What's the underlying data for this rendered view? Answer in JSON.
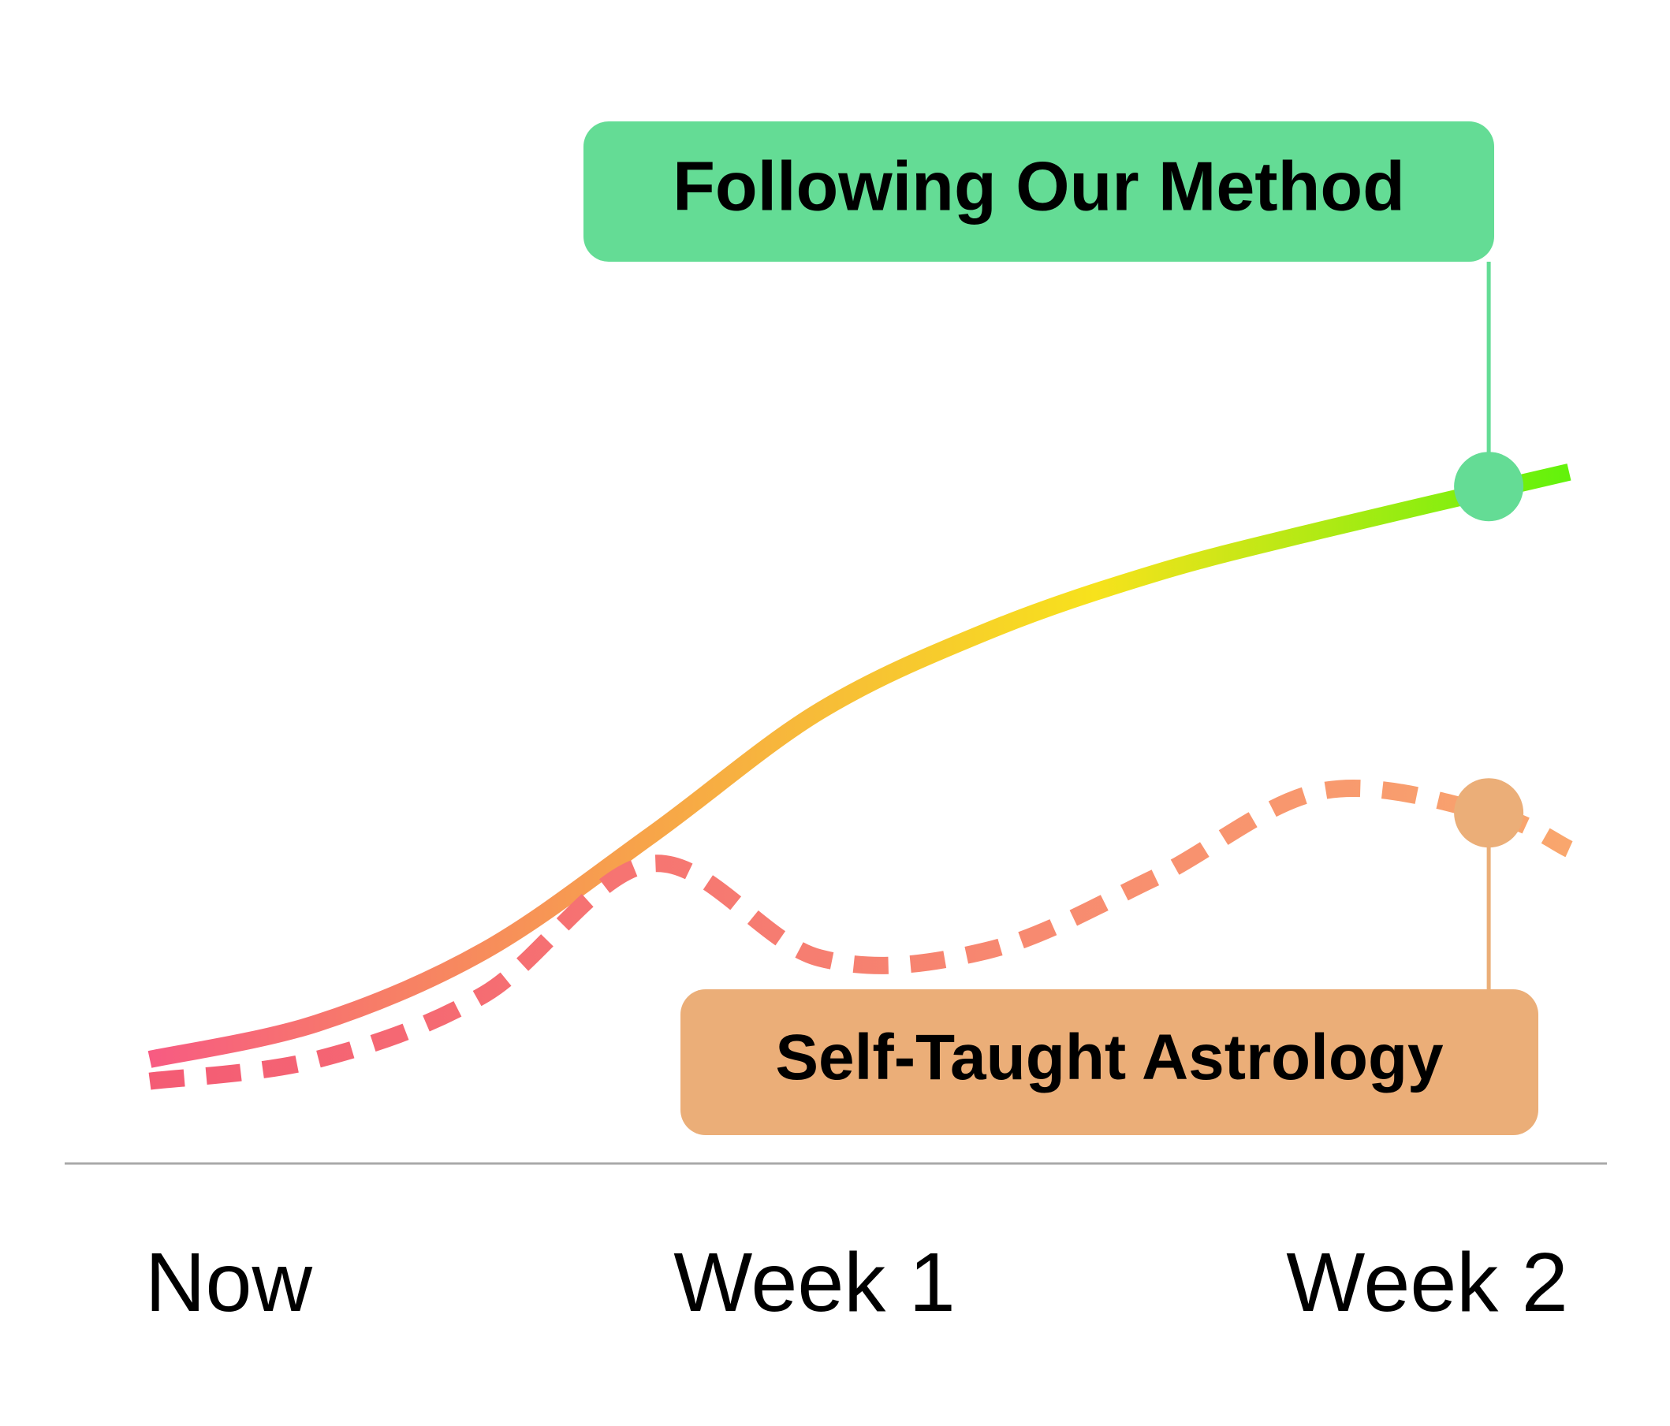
{
  "colors": {
    "background": "#ffffff",
    "method_gradient": [
      "#f75b82",
      "#f7a14c",
      "#f7e21c",
      "#62f20b"
    ],
    "method_marker": "#64dc95",
    "method_label_bg": "#64dc95",
    "astrology_stroke_start": "#f45b74",
    "astrology_stroke_end": "#f9a66d",
    "astrology_marker": "#ebae78",
    "astrology_label_bg": "#ebae78",
    "baseline": "#a9a9a9",
    "text": "#000000"
  },
  "chart_data": {
    "type": "line",
    "categories": [
      "Now",
      "Week 1",
      "Week 2"
    ],
    "x_range": [
      0,
      2.12
    ],
    "y_range": [
      0,
      100
    ],
    "series": [
      {
        "name": "Following Our Method",
        "style": "solid-gradient",
        "points": [
          [
            0.0,
            5
          ],
          [
            0.25,
            10
          ],
          [
            0.5,
            20
          ],
          [
            0.75,
            36
          ],
          [
            1.0,
            53
          ],
          [
            1.25,
            64
          ],
          [
            1.5,
            72
          ],
          [
            1.75,
            78
          ],
          [
            2.12,
            86
          ]
        ],
        "highlight_x": 2.0,
        "highlight_y": 84
      },
      {
        "name": "Self-Taught Astrology",
        "style": "dashed",
        "points": [
          [
            0.0,
            2
          ],
          [
            0.25,
            5
          ],
          [
            0.5,
            14
          ],
          [
            0.75,
            32
          ],
          [
            1.0,
            19
          ],
          [
            1.25,
            20
          ],
          [
            1.5,
            30
          ],
          [
            1.75,
            42
          ],
          [
            2.0,
            39
          ],
          [
            2.12,
            34
          ]
        ],
        "highlight_x": 2.0,
        "highlight_y": 39
      }
    ]
  }
}
